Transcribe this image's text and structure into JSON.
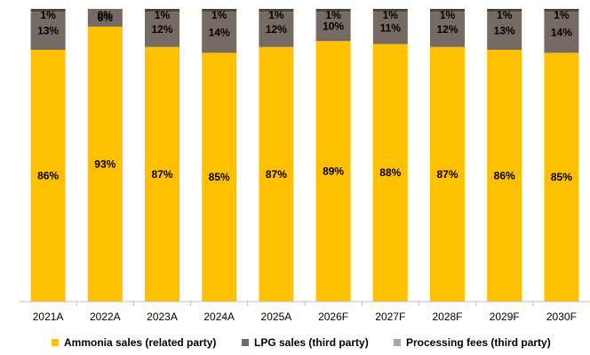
{
  "chart_data": {
    "type": "bar",
    "stacked": true,
    "normalized": true,
    "categories": [
      "2021A",
      "2022A",
      "2023A",
      "2024A",
      "2025A",
      "2026F",
      "2027F",
      "2028F",
      "2029F",
      "2030F"
    ],
    "series": [
      {
        "name": "Ammonia sales (related party)",
        "color": "#FFC000",
        "values": [
          86,
          93,
          87,
          85,
          87,
          89,
          88,
          87,
          86,
          85
        ],
        "labels": [
          "86%",
          "93%",
          "87%",
          "85%",
          "87%",
          "89%",
          "88%",
          "87%",
          "86%",
          "85%"
        ]
      },
      {
        "name": "LPG sales (third party)",
        "color": "#756B62",
        "values": [
          13,
          6,
          12,
          14,
          12,
          10,
          11,
          12,
          13,
          14
        ],
        "labels": [
          "13%",
          "6%",
          "12%",
          "14%",
          "12%",
          "10%",
          "11%",
          "12%",
          "13%",
          "14%"
        ]
      },
      {
        "name": "Processing fees (third party)",
        "color": "#4B453E",
        "values": [
          1,
          0,
          1,
          1,
          1,
          1,
          1,
          1,
          1,
          1
        ],
        "labels": [
          "1%",
          "0%",
          "1%",
          "1%",
          "1%",
          "1%",
          "1%",
          "1%",
          "1%",
          "1%"
        ]
      }
    ],
    "legend_swatch_colors": [
      "#FFC000",
      "#756B62",
      "#A6A6A6"
    ],
    "legend_position": "bottom",
    "grid": false,
    "value_unit": "%"
  }
}
